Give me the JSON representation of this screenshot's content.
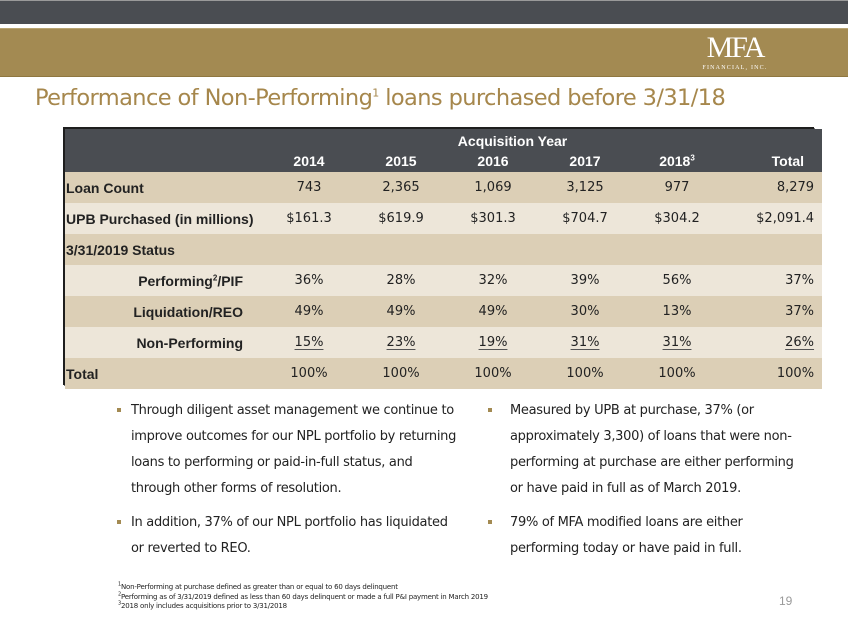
{
  "header": {
    "logo_main": "MFA",
    "logo_sub": "FINANCIAL, INC."
  },
  "title": {
    "text_before": "Performance of Non-Performing",
    "superscript": "1",
    "text_after": " loans purchased before 3/31/18"
  },
  "table": {
    "group_header": "Acquisition Year",
    "columns": [
      {
        "label": "2014",
        "sup": ""
      },
      {
        "label": "2015",
        "sup": ""
      },
      {
        "label": "2016",
        "sup": ""
      },
      {
        "label": "2017",
        "sup": ""
      },
      {
        "label": "2018",
        "sup": "3"
      },
      {
        "label": "Total",
        "sup": ""
      }
    ],
    "rows": [
      {
        "label": "Loan Count",
        "label_sup": "",
        "label_suffix": "",
        "values": [
          "743",
          "2,365",
          "1,069",
          "3,125",
          "977",
          "8,279"
        ]
      },
      {
        "label": "UPB Purchased (in millions)",
        "label_sup": "",
        "label_suffix": "",
        "values": [
          "$161.3",
          "$619.9",
          "$301.3",
          "$704.7",
          "$304.2",
          "$2,091.4"
        ]
      },
      {
        "label": "3/31/2019 Status",
        "label_sup": "",
        "label_suffix": "",
        "values": [
          "",
          "",
          "",
          "",
          "",
          ""
        ]
      },
      {
        "label": "Performing",
        "label_sup": "2",
        "label_suffix": "/PIF",
        "values": [
          "36%",
          "28%",
          "32%",
          "39%",
          "56%",
          "37%"
        ]
      },
      {
        "label": "Liquidation/REO",
        "label_sup": "",
        "label_suffix": "",
        "values": [
          "49%",
          "49%",
          "49%",
          "30%",
          "13%",
          "37%"
        ]
      },
      {
        "label": "Non-Performing",
        "label_sup": "",
        "label_suffix": "",
        "values": [
          "15%",
          "23%",
          "19%",
          "31%",
          "31%",
          "26%"
        ]
      },
      {
        "label": "Total",
        "label_sup": "",
        "label_suffix": "",
        "values": [
          "100%",
          "100%",
          "100%",
          "100%",
          "100%",
          "100%"
        ]
      }
    ]
  },
  "bullets_left": [
    "Through diligent asset management we continue to improve outcomes for our NPL portfolio by returning loans to performing or paid-in-full status, and through other forms of resolution.",
    "In addition, 37% of our NPL portfolio has liquidated or reverted to REO."
  ],
  "bullets_right": [
    "Measured by UPB at purchase, 37% (or approximately 3,300) of loans that were non-performing at purchase are either performing or have paid in full as of March 2019.",
    "79% of MFA modified loans are either performing today or have paid in full."
  ],
  "footnotes": [
    {
      "num": "1",
      "text": "Non-Performing at purchase defined as greater than or equal to 60 days delinquent"
    },
    {
      "num": "2",
      "text": "Performing as of 3/31/2019 defined as less than 60 days delinquent or made a full P&I payment in March 2019"
    },
    {
      "num": "3",
      "text": "2018 only includes acquisitions prior to 3/31/2018"
    }
  ],
  "page_number": "19",
  "colors": {
    "gold": "#a38a52",
    "dark_band": "#4a4d52",
    "title": "#a6874c",
    "row_dark": "#dccfb6",
    "row_light": "#ede6d9"
  }
}
